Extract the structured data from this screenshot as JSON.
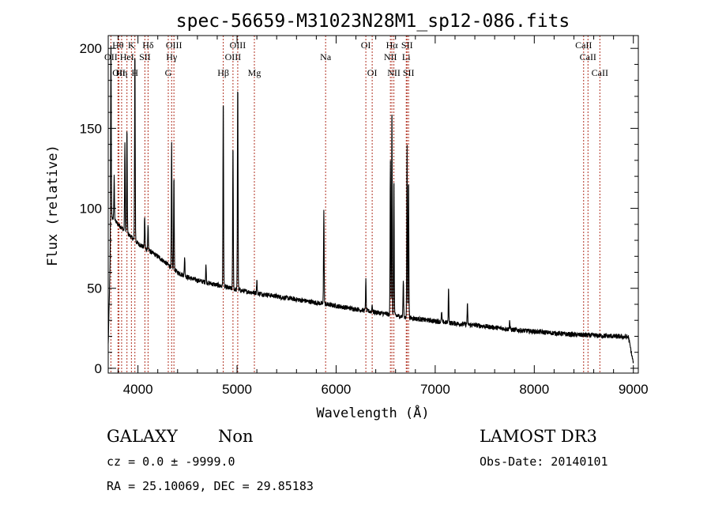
{
  "chart_data": {
    "type": "line",
    "title": "spec-56659-M31023N28M1_sp12-086.fits",
    "xlabel": "Wavelength (Å)",
    "ylabel": "Flux (relative)",
    "xlim": [
      3700,
      9050
    ],
    "ylim": [
      -3,
      208
    ],
    "xticks": [
      4000,
      5000,
      6000,
      7000,
      8000,
      9000
    ],
    "yticks": [
      0,
      50,
      100,
      150,
      200
    ],
    "grid": false,
    "line_color": "#000000",
    "marker_color": "#b03020",
    "spectral_lines": [
      {
        "name": "OII",
        "wavelength": 3727,
        "row": 2
      },
      {
        "name": "Hθ",
        "wavelength": 3798,
        "row": 1
      },
      {
        "name": "OII",
        "wavelength": 3808,
        "row": 3
      },
      {
        "name": "Hη",
        "wavelength": 3835,
        "row": 3
      },
      {
        "name": "HeI",
        "wavelength": 3889,
        "row": 2
      },
      {
        "name": "K",
        "wavelength": 3934,
        "row": 1
      },
      {
        "name": "H",
        "wavelength": 3969,
        "row": 3
      },
      {
        "name": "SII",
        "wavelength": 4070,
        "row": 2
      },
      {
        "name": "Hδ",
        "wavelength": 4102,
        "row": 1
      },
      {
        "name": "Hγ",
        "wavelength": 4340,
        "row": 2
      },
      {
        "name": "G",
        "wavelength": 4306,
        "row": 3
      },
      {
        "name": "OIII",
        "wavelength": 4363,
        "row": 1
      },
      {
        "name": "Hβ",
        "wavelength": 4861,
        "row": 3
      },
      {
        "name": "OIII",
        "wavelength": 4959,
        "row": 2
      },
      {
        "name": "OIII",
        "wavelength": 5007,
        "row": 1
      },
      {
        "name": "Mg",
        "wavelength": 5175,
        "row": 3
      },
      {
        "name": "Na",
        "wavelength": 5894,
        "row": 2
      },
      {
        "name": "OI",
        "wavelength": 6300,
        "row": 1
      },
      {
        "name": "OI",
        "wavelength": 6364,
        "row": 3
      },
      {
        "name": "NII",
        "wavelength": 6548,
        "row": 2
      },
      {
        "name": "Hα",
        "wavelength": 6563,
        "row": 1
      },
      {
        "name": "NII",
        "wavelength": 6583,
        "row": 3
      },
      {
        "name": "SII",
        "wavelength": 6716,
        "row": 1
      },
      {
        "name": "Li",
        "wavelength": 6708,
        "row": 2
      },
      {
        "name": "SII",
        "wavelength": 6731,
        "row": 3
      },
      {
        "name": "CaII",
        "wavelength": 8498,
        "row": 1
      },
      {
        "name": "CaII",
        "wavelength": 8542,
        "row": 2
      },
      {
        "name": "CaII",
        "wavelength": 8662,
        "row": 3
      }
    ],
    "continuum": [
      [
        3700,
        15
      ],
      [
        3730,
        95
      ],
      [
        3800,
        90
      ],
      [
        3900,
        84
      ],
      [
        4000,
        78
      ],
      [
        4100,
        74
      ],
      [
        4200,
        70
      ],
      [
        4300,
        65
      ],
      [
        4400,
        60
      ],
      [
        4500,
        57
      ],
      [
        4600,
        55
      ],
      [
        4800,
        52
      ],
      [
        5000,
        49
      ],
      [
        5200,
        47
      ],
      [
        5400,
        45
      ],
      [
        5600,
        43
      ],
      [
        5800,
        41
      ],
      [
        6000,
        39
      ],
      [
        6200,
        37
      ],
      [
        6400,
        35
      ],
      [
        6600,
        33
      ],
      [
        6800,
        31
      ],
      [
        7000,
        29.5
      ],
      [
        7200,
        28
      ],
      [
        7400,
        27
      ],
      [
        7600,
        25.5
      ],
      [
        7800,
        24
      ],
      [
        8000,
        23
      ],
      [
        8200,
        22
      ],
      [
        8400,
        21
      ],
      [
        8600,
        20.5
      ],
      [
        8800,
        20
      ],
      [
        8950,
        19.5
      ],
      [
        9000,
        3
      ]
    ],
    "emission_lines": [
      {
        "wavelength": 3727,
        "peak": 205
      },
      {
        "wavelength": 3760,
        "peak": 120
      },
      {
        "wavelength": 3868,
        "peak": 140
      },
      {
        "wavelength": 3889,
        "peak": 150
      },
      {
        "wavelength": 3969,
        "peak": 200
      },
      {
        "wavelength": 4068,
        "peak": 95
      },
      {
        "wavelength": 4102,
        "peak": 90
      },
      {
        "wavelength": 4340,
        "peak": 140
      },
      {
        "wavelength": 4363,
        "peak": 120
      },
      {
        "wavelength": 4471,
        "peak": 70
      },
      {
        "wavelength": 4686,
        "peak": 65
      },
      {
        "wavelength": 4861,
        "peak": 170
      },
      {
        "wavelength": 4959,
        "peak": 140
      },
      {
        "wavelength": 5007,
        "peak": 180
      },
      {
        "wavelength": 5200,
        "peak": 55
      },
      {
        "wavelength": 5876,
        "peak": 100
      },
      {
        "wavelength": 6300,
        "peak": 55
      },
      {
        "wavelength": 6364,
        "peak": 40
      },
      {
        "wavelength": 6548,
        "peak": 130
      },
      {
        "wavelength": 6563,
        "peak": 165
      },
      {
        "wavelength": 6583,
        "peak": 120
      },
      {
        "wavelength": 6678,
        "peak": 55
      },
      {
        "wavelength": 6716,
        "peak": 140
      },
      {
        "wavelength": 6731,
        "peak": 120
      },
      {
        "wavelength": 7065,
        "peak": 35
      },
      {
        "wavelength": 7135,
        "peak": 50
      },
      {
        "wavelength": 7325,
        "peak": 40
      },
      {
        "wavelength": 7751,
        "peak": 30
      }
    ]
  },
  "footer": {
    "object_class": "GALAXY",
    "subclass": "Non",
    "survey": "LAMOST DR3",
    "redshift": "cz = 0.0 ± -9999.0",
    "obs_date": "Obs-Date: 20140101",
    "coords": "RA =  25.10069, DEC =  29.85183"
  }
}
